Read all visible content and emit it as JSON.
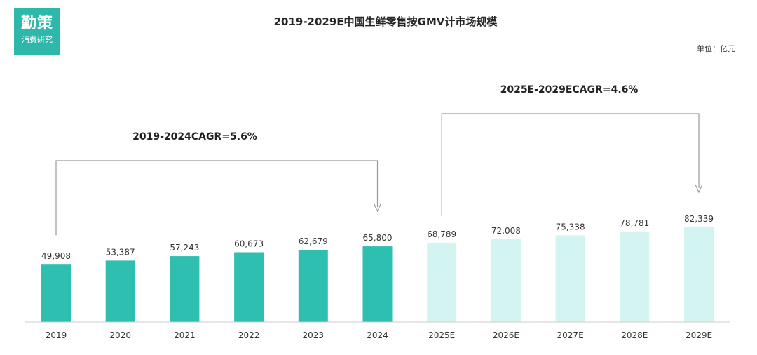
{
  "logo": {
    "main": "勤策",
    "sub": "消费研究"
  },
  "unit_label": "单位：亿元",
  "colors": {
    "actual": "#2ebfb0",
    "forecast": "#d4f4f1",
    "axis": "#cccccc",
    "text": "#333333",
    "bracket": "#9a9a9a",
    "logo_bg": "#2db8a9"
  },
  "chart_data": {
    "type": "bar",
    "title": "2019-2029E中国生鲜零售按GMV计市场规模",
    "xlabel": "",
    "ylabel": "",
    "unit": "亿元",
    "ylim": [
      0,
      100000
    ],
    "categories": [
      "2019",
      "2020",
      "2021",
      "2022",
      "2023",
      "2024",
      "2025E",
      "2026E",
      "2027E",
      "2028E",
      "2029E"
    ],
    "values": [
      49908,
      53387,
      57243,
      60673,
      62679,
      65800,
      68789,
      72008,
      75338,
      78781,
      82339
    ],
    "value_labels": [
      "49,908",
      "53,387",
      "57,243",
      "60,673",
      "62,679",
      "65,800",
      "68,789",
      "72,008",
      "75,338",
      "78,781",
      "82,339"
    ],
    "forecast_from_index": 6,
    "annotations": [
      {
        "label": "2019-2024CAGR=5.6%",
        "from_index": 0,
        "to_index": 5
      },
      {
        "label": "2025E-2029ECAGR=4.6%",
        "from_index": 6,
        "to_index": 10
      }
    ]
  }
}
